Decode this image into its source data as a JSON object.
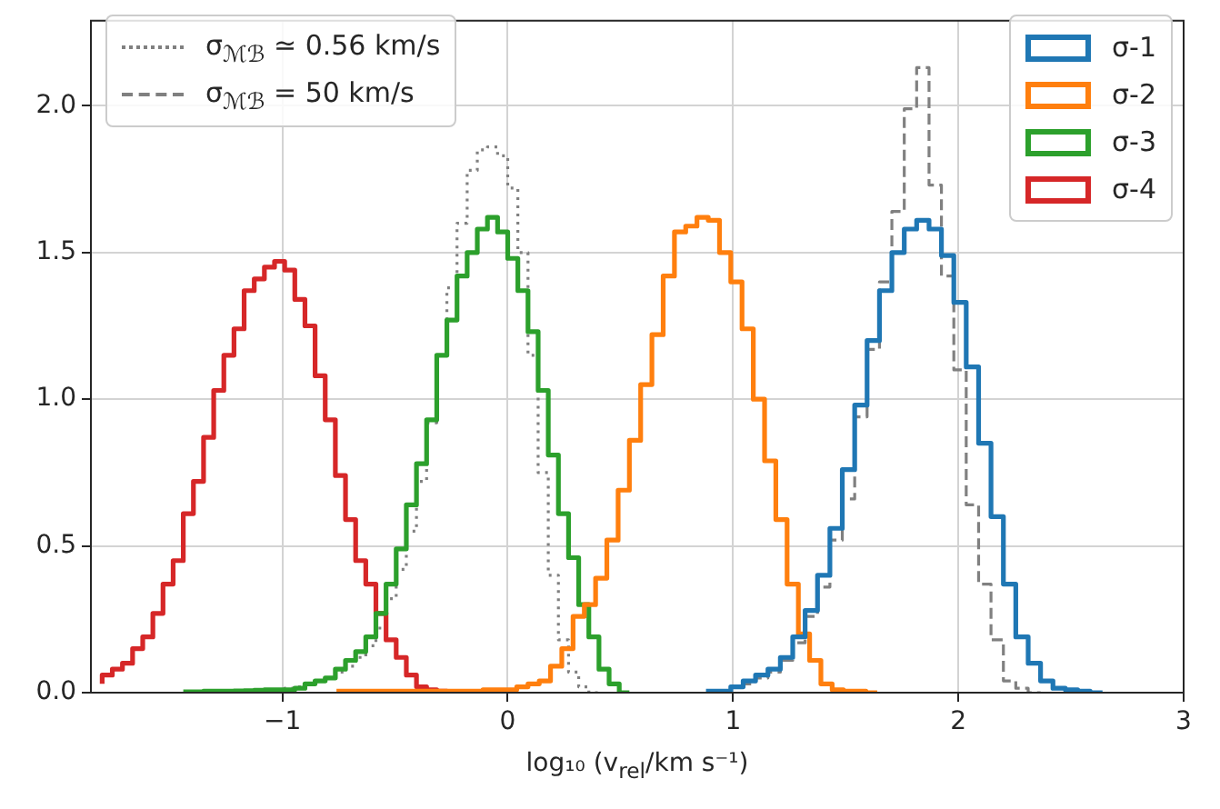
{
  "chart_data": {
    "type": "step",
    "xlabel": "log₁₀ (v$_{rel}$/km s⁻¹)",
    "xlim": [
      -1.85,
      3
    ],
    "xticks": [
      {
        "value": -1,
        "label": "−1"
      },
      0,
      1,
      2,
      3
    ],
    "ylim": [
      0,
      2.29
    ],
    "yticks": [
      {
        "value": 0,
        "label": "0.0"
      },
      {
        "value": 0.5,
        "label": "0.5"
      },
      {
        "value": 1,
        "label": "1.0"
      },
      {
        "value": 1.5,
        "label": "1.5"
      },
      {
        "value": 2,
        "label": "2.0"
      }
    ],
    "grid": true,
    "legend": "top right",
    "series": [
      {
        "name": "σ-1",
        "color": "#1f77b4",
        "x": [
          0.88,
          0.935,
          0.99,
          1.045,
          1.1,
          1.155,
          1.21,
          1.265,
          1.32,
          1.375,
          1.43,
          1.485,
          1.54,
          1.595,
          1.65,
          1.705,
          1.76,
          1.815,
          1.87,
          1.925,
          1.98,
          2.035,
          2.09,
          2.145,
          2.2,
          2.255,
          2.31,
          2.365,
          2.42,
          2.475,
          2.53,
          2.585,
          2.64
        ],
        "values": [
          0.005,
          0.005,
          0.005,
          0.02,
          0.04,
          0.06,
          0.08,
          0.12,
          0.19,
          0.28,
          0.4,
          0.56,
          0.76,
          0.98,
          1.2,
          1.37,
          1.5,
          1.58,
          1.61,
          1.58,
          1.49,
          1.33,
          1.11,
          0.85,
          0.6,
          0.37,
          0.19,
          0.1,
          0.04,
          0.015,
          0.01,
          0.005,
          0
        ]
      },
      {
        "name": "σ-2",
        "color": "#ff7f0e",
        "x": [
          -0.76,
          -0.71,
          -0.66,
          -0.61,
          -0.56,
          -0.51,
          -0.46,
          -0.41,
          -0.36,
          -0.31,
          -0.26,
          -0.21,
          -0.16,
          -0.11,
          -0.06,
          -0.01,
          0.04,
          0.09,
          0.14,
          0.19,
          0.24,
          0.29,
          0.34,
          0.39,
          0.44,
          0.49,
          0.54,
          0.59,
          0.64,
          0.69,
          0.74,
          0.79,
          0.84,
          0.89,
          0.94,
          0.99,
          1.04,
          1.09,
          1.14,
          1.19,
          1.24,
          1.29,
          1.34,
          1.39,
          1.44,
          1.49,
          1.54,
          1.59,
          1.64
        ],
        "values": [
          0.005,
          0.005,
          0.005,
          0.005,
          0.005,
          0.005,
          0.005,
          0.005,
          0.005,
          0.005,
          0.005,
          0.005,
          0.005,
          0.005,
          0.01,
          0.01,
          0.01,
          0.02,
          0.03,
          0.04,
          0.09,
          0.15,
          0.26,
          0.3,
          0.39,
          0.52,
          0.69,
          0.86,
          1.05,
          1.22,
          1.42,
          1.57,
          1.59,
          1.62,
          1.61,
          1.5,
          1.4,
          1.24,
          1.0,
          0.79,
          0.59,
          0.37,
          0.2,
          0.11,
          0.03,
          0.01,
          0.005,
          0.005,
          0
        ]
      },
      {
        "name": "σ-3",
        "color": "#2ca02c",
        "x": [
          -1.44,
          -1.395,
          -1.35,
          -1.305,
          -1.26,
          -1.215,
          -1.17,
          -1.125,
          -1.08,
          -1.035,
          -0.99,
          -0.945,
          -0.9,
          -0.855,
          -0.81,
          -0.765,
          -0.72,
          -0.675,
          -0.63,
          -0.585,
          -0.54,
          -0.495,
          -0.45,
          -0.405,
          -0.36,
          -0.315,
          -0.27,
          -0.225,
          -0.18,
          -0.135,
          -0.09,
          -0.045,
          0,
          0.045,
          0.09,
          0.135,
          0.18,
          0.225,
          0.27,
          0.315,
          0.36,
          0.405,
          0.45,
          0.495,
          0.54
        ],
        "values": [
          0.003,
          0.003,
          0.003,
          0.005,
          0.005,
          0.005,
          0.006,
          0.007,
          0.008,
          0.01,
          0.01,
          0.01,
          0.015,
          0.03,
          0.04,
          0.05,
          0.08,
          0.11,
          0.14,
          0.19,
          0.27,
          0.37,
          0.49,
          0.64,
          0.78,
          0.93,
          1.15,
          1.27,
          1.42,
          1.5,
          1.58,
          1.62,
          1.57,
          1.48,
          1.37,
          1.23,
          1.03,
          0.81,
          0.61,
          0.46,
          0.3,
          0.19,
          0.08,
          0.03,
          0
        ]
      },
      {
        "name": "σ-4",
        "color": "#d62728",
        "x": [
          -1.8,
          -1.755,
          -1.71,
          -1.665,
          -1.62,
          -1.575,
          -1.53,
          -1.485,
          -1.44,
          -1.395,
          -1.35,
          -1.305,
          -1.26,
          -1.215,
          -1.17,
          -1.125,
          -1.08,
          -1.035,
          -0.99,
          -0.945,
          -0.9,
          -0.855,
          -0.81,
          -0.765,
          -0.72,
          -0.675,
          -0.63,
          -0.585,
          -0.54,
          -0.495,
          -0.45,
          -0.405,
          -0.36,
          -0.315,
          -0.27,
          -0.225
        ],
        "values": [
          0.03,
          0.06,
          0.08,
          0.1,
          0.15,
          0.19,
          0.27,
          0.37,
          0.45,
          0.61,
          0.72,
          0.87,
          1.03,
          1.15,
          1.24,
          1.37,
          1.41,
          1.45,
          1.47,
          1.44,
          1.34,
          1.25,
          1.08,
          0.93,
          0.74,
          0.59,
          0.45,
          0.37,
          0.27,
          0.18,
          0.12,
          0.06,
          0.02,
          0.01,
          0.005,
          0
        ]
      },
      {
        "name": "σ$_{ℳℬ}$ ≃ 0.56 km/s",
        "color": "#808080",
        "line_style": "dotted",
        "x": [
          -0.99,
          -0.945,
          -0.9,
          -0.855,
          -0.81,
          -0.765,
          -0.72,
          -0.675,
          -0.63,
          -0.585,
          -0.54,
          -0.495,
          -0.45,
          -0.405,
          -0.36,
          -0.315,
          -0.27,
          -0.225,
          -0.18,
          -0.135,
          -0.09,
          -0.045,
          0,
          0.045,
          0.09,
          0.135,
          0.18,
          0.225,
          0.27,
          0.315,
          0.36,
          0.405
        ],
        "values": [
          0.01,
          0.015,
          0.02,
          0.03,
          0.04,
          0.05,
          0.07,
          0.09,
          0.12,
          0.16,
          0.22,
          0.32,
          0.42,
          0.55,
          0.72,
          0.92,
          1.15,
          1.38,
          1.6,
          1.78,
          1.85,
          1.86,
          1.83,
          1.72,
          1.5,
          1.15,
          0.75,
          0.4,
          0.18,
          0.07,
          0.02,
          0
        ]
      },
      {
        "name": "σ$_{ℳℬ}$ = 50 km/s",
        "color": "#808080",
        "line_style": "dashed",
        "x": [
          1.045,
          1.1,
          1.155,
          1.21,
          1.265,
          1.32,
          1.375,
          1.43,
          1.485,
          1.54,
          1.595,
          1.65,
          1.705,
          1.76,
          1.815,
          1.87,
          1.925,
          1.98,
          2.035,
          2.09,
          2.145,
          2.2,
          2.255,
          2.31,
          2.365
        ],
        "values": [
          0.02,
          0.03,
          0.05,
          0.07,
          0.11,
          0.17,
          0.26,
          0.36,
          0.52,
          0.66,
          0.94,
          1.17,
          1.4,
          1.64,
          1.99,
          2.13,
          1.73,
          1.42,
          1.1,
          0.64,
          0.37,
          0.18,
          0.04,
          0.015,
          0
        ]
      }
    ]
  }
}
